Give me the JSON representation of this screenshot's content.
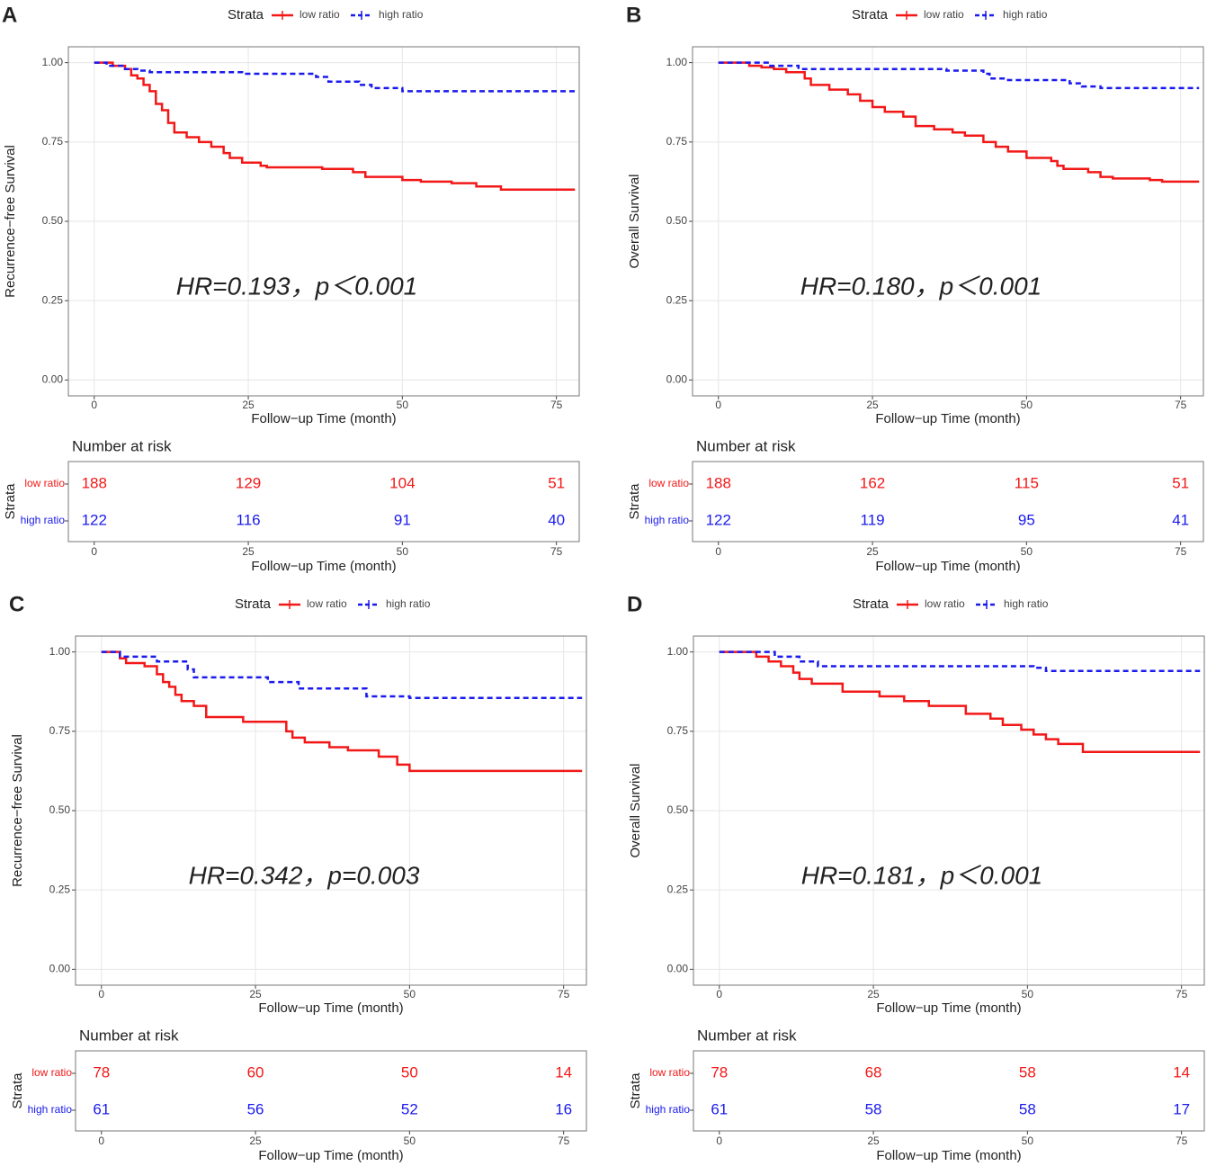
{
  "chart_data": [
    {
      "type": "line",
      "label": "A",
      "legend_title": "Strata",
      "xlabel": "Follow−up Time (month)",
      "ylabel": "Recurrence−free Survival",
      "annotation": "HR=0.193，p＜0.001",
      "xlim": [
        -4.2,
        78.7
      ],
      "ylim": [
        -0.05,
        1.05
      ],
      "xticks": [
        0,
        25,
        50,
        75
      ],
      "yticks": [
        {
          "value": 0,
          "label": "0.00"
        },
        {
          "value": 0.25,
          "label": "0.25"
        },
        {
          "value": 0.5,
          "label": "0.50"
        },
        {
          "value": 0.75,
          "label": "0.75"
        },
        {
          "value": 1,
          "label": "1.00"
        }
      ],
      "grid": true,
      "series": [
        {
          "name": "low ratio",
          "color": "#f21818",
          "linestyle": "solid",
          "x": [
            0,
            3,
            5,
            6,
            7,
            8,
            9,
            10,
            11,
            12,
            13,
            15,
            17,
            19,
            21,
            22,
            24,
            27,
            28,
            37,
            42,
            44,
            50,
            53,
            58,
            62,
            66,
            78
          ],
          "values": [
            1.0,
            0.99,
            0.98,
            0.96,
            0.95,
            0.93,
            0.91,
            0.87,
            0.85,
            0.81,
            0.78,
            0.765,
            0.75,
            0.735,
            0.715,
            0.7,
            0.685,
            0.675,
            0.67,
            0.665,
            0.655,
            0.64,
            0.63,
            0.625,
            0.62,
            0.61,
            0.6,
            0.6
          ]
        },
        {
          "name": "high ratio",
          "color": "#1a1aee",
          "linestyle": "dashed",
          "x": [
            0,
            2,
            5,
            7,
            9,
            24,
            36,
            38,
            43,
            45,
            50,
            78
          ],
          "values": [
            1.0,
            0.99,
            0.98,
            0.975,
            0.97,
            0.965,
            0.955,
            0.94,
            0.93,
            0.92,
            0.91,
            0.91
          ]
        }
      ],
      "risk_table": {
        "title": "Number at risk",
        "ylabel": "Strata",
        "values": [
          [
            188,
            129,
            104,
            51
          ],
          [
            122,
            116,
            91,
            40
          ]
        ]
      }
    },
    {
      "type": "line",
      "label": "B",
      "legend_title": "Strata",
      "xlabel": "Follow−up Time (month)",
      "ylabel": "Overall Survival",
      "annotation": "HR=0.180，p＜0.001",
      "xlim": [
        -4.2,
        78.7
      ],
      "ylim": [
        -0.05,
        1.05
      ],
      "xticks": [
        0,
        25,
        50,
        75
      ],
      "yticks": [
        {
          "value": 0,
          "label": "0.00"
        },
        {
          "value": 0.25,
          "label": "0.25"
        },
        {
          "value": 0.5,
          "label": "0.50"
        },
        {
          "value": 0.75,
          "label": "0.75"
        },
        {
          "value": 1,
          "label": "1.00"
        }
      ],
      "grid": true,
      "series": [
        {
          "name": "low ratio",
          "color": "#f21818",
          "linestyle": "solid",
          "x": [
            0,
            5,
            7,
            9,
            11,
            14,
            15,
            18,
            21,
            23,
            25,
            27,
            30,
            32,
            35,
            38,
            40,
            43,
            45,
            47,
            50,
            54,
            55,
            56,
            60,
            62,
            64,
            70,
            72,
            78
          ],
          "values": [
            1.0,
            0.99,
            0.985,
            0.98,
            0.97,
            0.95,
            0.93,
            0.915,
            0.9,
            0.88,
            0.86,
            0.845,
            0.83,
            0.8,
            0.79,
            0.78,
            0.77,
            0.75,
            0.735,
            0.72,
            0.7,
            0.69,
            0.675,
            0.665,
            0.655,
            0.64,
            0.635,
            0.63,
            0.625,
            0.625
          ]
        },
        {
          "name": "high ratio",
          "color": "#1a1aee",
          "linestyle": "dashed",
          "x": [
            0,
            8,
            13,
            37,
            43,
            44,
            47,
            57,
            59,
            62,
            78
          ],
          "values": [
            1.0,
            0.99,
            0.98,
            0.975,
            0.965,
            0.95,
            0.945,
            0.935,
            0.925,
            0.92,
            0.92
          ]
        }
      ],
      "risk_table": {
        "title": "Number at risk",
        "ylabel": "Strata",
        "values": [
          [
            188,
            162,
            115,
            51
          ],
          [
            122,
            119,
            95,
            41
          ]
        ]
      }
    },
    {
      "type": "line",
      "label": "C",
      "legend_title": "Strata",
      "xlabel": "Follow−up Time (month)",
      "ylabel": "Recurrence−free Survival",
      "annotation": "HR=0.342，p=0.003",
      "xlim": [
        -4.2,
        78.7
      ],
      "ylim": [
        -0.05,
        1.05
      ],
      "xticks": [
        0,
        25,
        50,
        75
      ],
      "yticks": [
        {
          "value": 0,
          "label": "0.00"
        },
        {
          "value": 0.25,
          "label": "0.25"
        },
        {
          "value": 0.5,
          "label": "0.50"
        },
        {
          "value": 0.75,
          "label": "0.75"
        },
        {
          "value": 1,
          "label": "1.00"
        }
      ],
      "grid": true,
      "series": [
        {
          "name": "low ratio",
          "color": "#f21818",
          "linestyle": "solid",
          "x": [
            0,
            3,
            4,
            7,
            9,
            10,
            11,
            12,
            13,
            15,
            17,
            23,
            30,
            31,
            33,
            37,
            40,
            45,
            48,
            50,
            78
          ],
          "values": [
            1.0,
            0.98,
            0.965,
            0.955,
            0.93,
            0.905,
            0.89,
            0.865,
            0.845,
            0.83,
            0.795,
            0.78,
            0.75,
            0.73,
            0.715,
            0.7,
            0.69,
            0.67,
            0.645,
            0.625,
            0.625
          ]
        },
        {
          "name": "high ratio",
          "color": "#1a1aee",
          "linestyle": "dashed",
          "x": [
            0,
            3,
            9,
            14,
            15,
            27,
            32,
            43,
            50,
            78
          ],
          "values": [
            1.0,
            0.985,
            0.97,
            0.945,
            0.92,
            0.905,
            0.885,
            0.86,
            0.855,
            0.855
          ]
        }
      ],
      "risk_table": {
        "title": "Number at risk",
        "ylabel": "Strata",
        "values": [
          [
            78,
            60,
            50,
            14
          ],
          [
            61,
            56,
            52,
            16
          ]
        ]
      }
    },
    {
      "type": "line",
      "label": "D",
      "legend_title": "Strata",
      "xlabel": "Follow−up Time (month)",
      "ylabel": "Overall Survival",
      "annotation": "HR=0.181，p＜0.001",
      "xlim": [
        -4.2,
        78.7
      ],
      "ylim": [
        -0.05,
        1.05
      ],
      "xticks": [
        0,
        25,
        50,
        75
      ],
      "yticks": [
        {
          "value": 0,
          "label": "0.00"
        },
        {
          "value": 0.25,
          "label": "0.25"
        },
        {
          "value": 0.5,
          "label": "0.50"
        },
        {
          "value": 0.75,
          "label": "0.75"
        },
        {
          "value": 1,
          "label": "1.00"
        }
      ],
      "grid": true,
      "series": [
        {
          "name": "low ratio",
          "color": "#f21818",
          "linestyle": "solid",
          "x": [
            0,
            6,
            8,
            10,
            12,
            13,
            15,
            20,
            26,
            30,
            34,
            40,
            44,
            46,
            49,
            51,
            53,
            55,
            59,
            78
          ],
          "values": [
            1.0,
            0.985,
            0.97,
            0.955,
            0.935,
            0.915,
            0.9,
            0.875,
            0.86,
            0.845,
            0.83,
            0.805,
            0.79,
            0.77,
            0.755,
            0.74,
            0.725,
            0.71,
            0.685,
            0.685
          ]
        },
        {
          "name": "high ratio",
          "color": "#1a1aee",
          "linestyle": "dashed",
          "x": [
            0,
            9,
            13,
            16,
            51,
            53,
            78
          ],
          "values": [
            1.0,
            0.985,
            0.97,
            0.955,
            0.95,
            0.94,
            0.94
          ]
        }
      ],
      "risk_table": {
        "title": "Number at risk",
        "ylabel": "Strata",
        "values": [
          [
            78,
            68,
            58,
            14
          ],
          [
            61,
            58,
            58,
            17
          ]
        ]
      }
    }
  ]
}
